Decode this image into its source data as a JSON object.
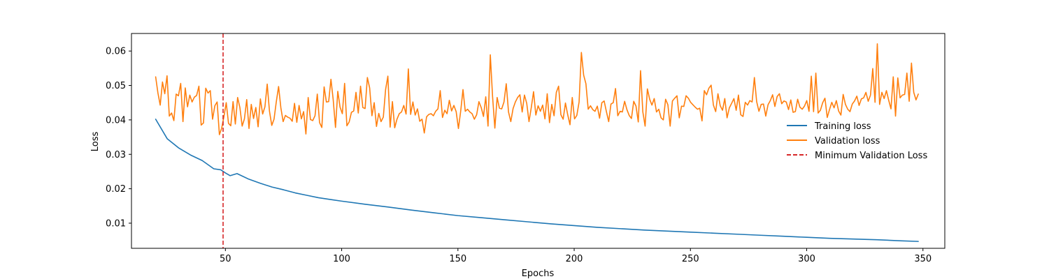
{
  "chart_data": {
    "type": "line",
    "xlabel": "Epochs",
    "ylabel": "Loss",
    "xlim": [
      9.6,
      359.4
    ],
    "ylim": [
      0.0027,
      0.0651
    ],
    "x_ticks": [
      50,
      100,
      150,
      200,
      250,
      300,
      350
    ],
    "y_ticks": [
      0.01,
      0.02,
      0.03,
      0.04,
      0.05,
      0.06
    ],
    "x_tick_labels": [
      "50",
      "100",
      "150",
      "200",
      "250",
      "300",
      "350"
    ],
    "y_tick_labels": [
      "0.01",
      "0.02",
      "0.03",
      "0.04",
      "0.05",
      "0.06"
    ],
    "grid": false,
    "legend_position": "center-right",
    "series": [
      {
        "name": "Training loss",
        "color": "#1f77b4",
        "x_start": 20,
        "x_end": 348,
        "x": [
          20,
          25,
          30,
          35,
          40,
          45,
          48,
          50,
          52,
          55,
          60,
          65,
          70,
          75,
          80,
          85,
          90,
          95,
          100,
          110,
          120,
          130,
          140,
          150,
          160,
          170,
          180,
          190,
          200,
          210,
          220,
          230,
          240,
          250,
          260,
          270,
          280,
          290,
          300,
          310,
          320,
          330,
          340,
          348
        ],
        "values": [
          0.0402,
          0.0345,
          0.0318,
          0.0298,
          0.0282,
          0.0258,
          0.0255,
          0.0246,
          0.0238,
          0.0244,
          0.0228,
          0.0216,
          0.0205,
          0.0197,
          0.0188,
          0.0181,
          0.0174,
          0.0169,
          0.0164,
          0.0155,
          0.0147,
          0.0138,
          0.013,
          0.0122,
          0.0116,
          0.011,
          0.0104,
          0.0098,
          0.0093,
          0.0088,
          0.0084,
          0.008,
          0.0077,
          0.0074,
          0.0071,
          0.0068,
          0.0065,
          0.0062,
          0.0059,
          0.0056,
          0.0054,
          0.0052,
          0.0049,
          0.0047
        ]
      },
      {
        "name": "Validation loss",
        "color": "#ff7f0e",
        "x_start": 20,
        "x_end": 348,
        "values": [
          0.0525,
          0.0478,
          0.0443,
          0.051,
          0.0476,
          0.0528,
          0.0411,
          0.042,
          0.0398,
          0.0475,
          0.047,
          0.0506,
          0.0395,
          0.0493,
          0.0438,
          0.0472,
          0.0452,
          0.0466,
          0.0471,
          0.0498,
          0.0385,
          0.0391,
          0.0492,
          0.0478,
          0.0485,
          0.0402,
          0.0441,
          0.0452,
          0.0357,
          0.0376,
          0.041,
          0.045,
          0.039,
          0.0383,
          0.0453,
          0.0388,
          0.0465,
          0.0436,
          0.0382,
          0.0403,
          0.0459,
          0.0375,
          0.0445,
          0.0404,
          0.0436,
          0.038,
          0.0461,
          0.0417,
          0.0438,
          0.0504,
          0.0425,
          0.0384,
          0.0402,
          0.0453,
          0.0497,
          0.0435,
          0.0395,
          0.0413,
          0.0408,
          0.0405,
          0.0396,
          0.0448,
          0.0393,
          0.0442,
          0.0403,
          0.0424,
          0.0359,
          0.0465,
          0.0401,
          0.0398,
          0.0412,
          0.0475,
          0.0392,
          0.0378,
          0.0496,
          0.0452,
          0.0453,
          0.0518,
          0.0458,
          0.0378,
          0.0483,
          0.0437,
          0.0418,
          0.0506,
          0.0383,
          0.0394,
          0.0422,
          0.0426,
          0.048,
          0.042,
          0.0498,
          0.0436,
          0.0433,
          0.0523,
          0.0493,
          0.0412,
          0.045,
          0.0381,
          0.0419,
          0.0395,
          0.0408,
          0.0488,
          0.0527,
          0.0379,
          0.0453,
          0.0377,
          0.0402,
          0.0418,
          0.0423,
          0.0442,
          0.0417,
          0.0548,
          0.0416,
          0.0452,
          0.0414,
          0.0432,
          0.0396,
          0.0402,
          0.0362,
          0.0409,
          0.0416,
          0.0418,
          0.0412,
          0.0425,
          0.0432,
          0.0485,
          0.0407,
          0.0428,
          0.0418,
          0.0457,
          0.0426,
          0.0442,
          0.0424,
          0.0375,
          0.0426,
          0.0488,
          0.0425,
          0.0431,
          0.0423,
          0.0418,
          0.0402,
          0.0415,
          0.0453,
          0.0436,
          0.041,
          0.0467,
          0.0382,
          0.0589,
          0.0467,
          0.0376,
          0.0465,
          0.0434,
          0.0432,
          0.0452,
          0.0505,
          0.0423,
          0.0395,
          0.0433,
          0.0452,
          0.0465,
          0.0473,
          0.0423,
          0.0472,
          0.0448,
          0.0395,
          0.0436,
          0.0482,
          0.0414,
          0.0441,
          0.0425,
          0.0443,
          0.0403,
          0.0476,
          0.0392,
          0.0445,
          0.0412,
          0.048,
          0.0498,
          0.0415,
          0.0402,
          0.0449,
          0.0415,
          0.0386,
          0.0465,
          0.0403,
          0.0413,
          0.0452,
          0.0596,
          0.053,
          0.0505,
          0.0431,
          0.0441,
          0.043,
          0.0425,
          0.044,
          0.0405,
          0.045,
          0.0455,
          0.0424,
          0.0395,
          0.0446,
          0.045,
          0.0491,
          0.0412,
          0.0425,
          0.0423,
          0.0454,
          0.043,
          0.0413,
          0.0404,
          0.0454,
          0.044,
          0.0394,
          0.0543,
          0.0423,
          0.0382,
          0.049,
          0.046,
          0.0443,
          0.0462,
          0.0423,
          0.0431,
          0.0406,
          0.04,
          0.046,
          0.0444,
          0.0382,
          0.0455,
          0.0463,
          0.047,
          0.0406,
          0.044,
          0.0439,
          0.047,
          0.0463,
          0.0451,
          0.0444,
          0.0437,
          0.0431,
          0.0434,
          0.0397,
          0.0485,
          0.0473,
          0.0492,
          0.0501,
          0.0443,
          0.0424,
          0.0476,
          0.0441,
          0.0428,
          0.0462,
          0.0406,
          0.0435,
          0.0448,
          0.0462,
          0.0428,
          0.0472,
          0.0415,
          0.041,
          0.0451,
          0.0443,
          0.0456,
          0.0452,
          0.0523,
          0.0453,
          0.0425,
          0.0445,
          0.0446,
          0.0411,
          0.0444,
          0.0456,
          0.0473,
          0.0439,
          0.0468,
          0.0476,
          0.0447,
          0.0455,
          0.0452,
          0.043,
          0.0458,
          0.0422,
          0.0424,
          0.046,
          0.0437,
          0.0431,
          0.044,
          0.0456,
          0.0425,
          0.0527,
          0.0424,
          0.0536,
          0.042,
          0.0428,
          0.045,
          0.0463,
          0.0407,
          0.043,
          0.0451,
          0.0435,
          0.0456,
          0.0426,
          0.0414,
          0.0474,
          0.0445,
          0.0431,
          0.0424,
          0.0446,
          0.0455,
          0.0469,
          0.0442,
          0.0461,
          0.0464,
          0.048,
          0.0454,
          0.0472,
          0.0549,
          0.0451,
          0.0621,
          0.0445,
          0.048,
          0.0462,
          0.0485,
          0.0457,
          0.0432,
          0.0525,
          0.0411,
          0.0522,
          0.0464,
          0.0472,
          0.0474,
          0.0536,
          0.0454,
          0.0565,
          0.048,
          0.0458,
          0.0475
        ]
      }
    ],
    "vline": {
      "name": "Minimum Validation Loss",
      "x": 49,
      "color": "#d62728",
      "style": "dashed"
    }
  }
}
